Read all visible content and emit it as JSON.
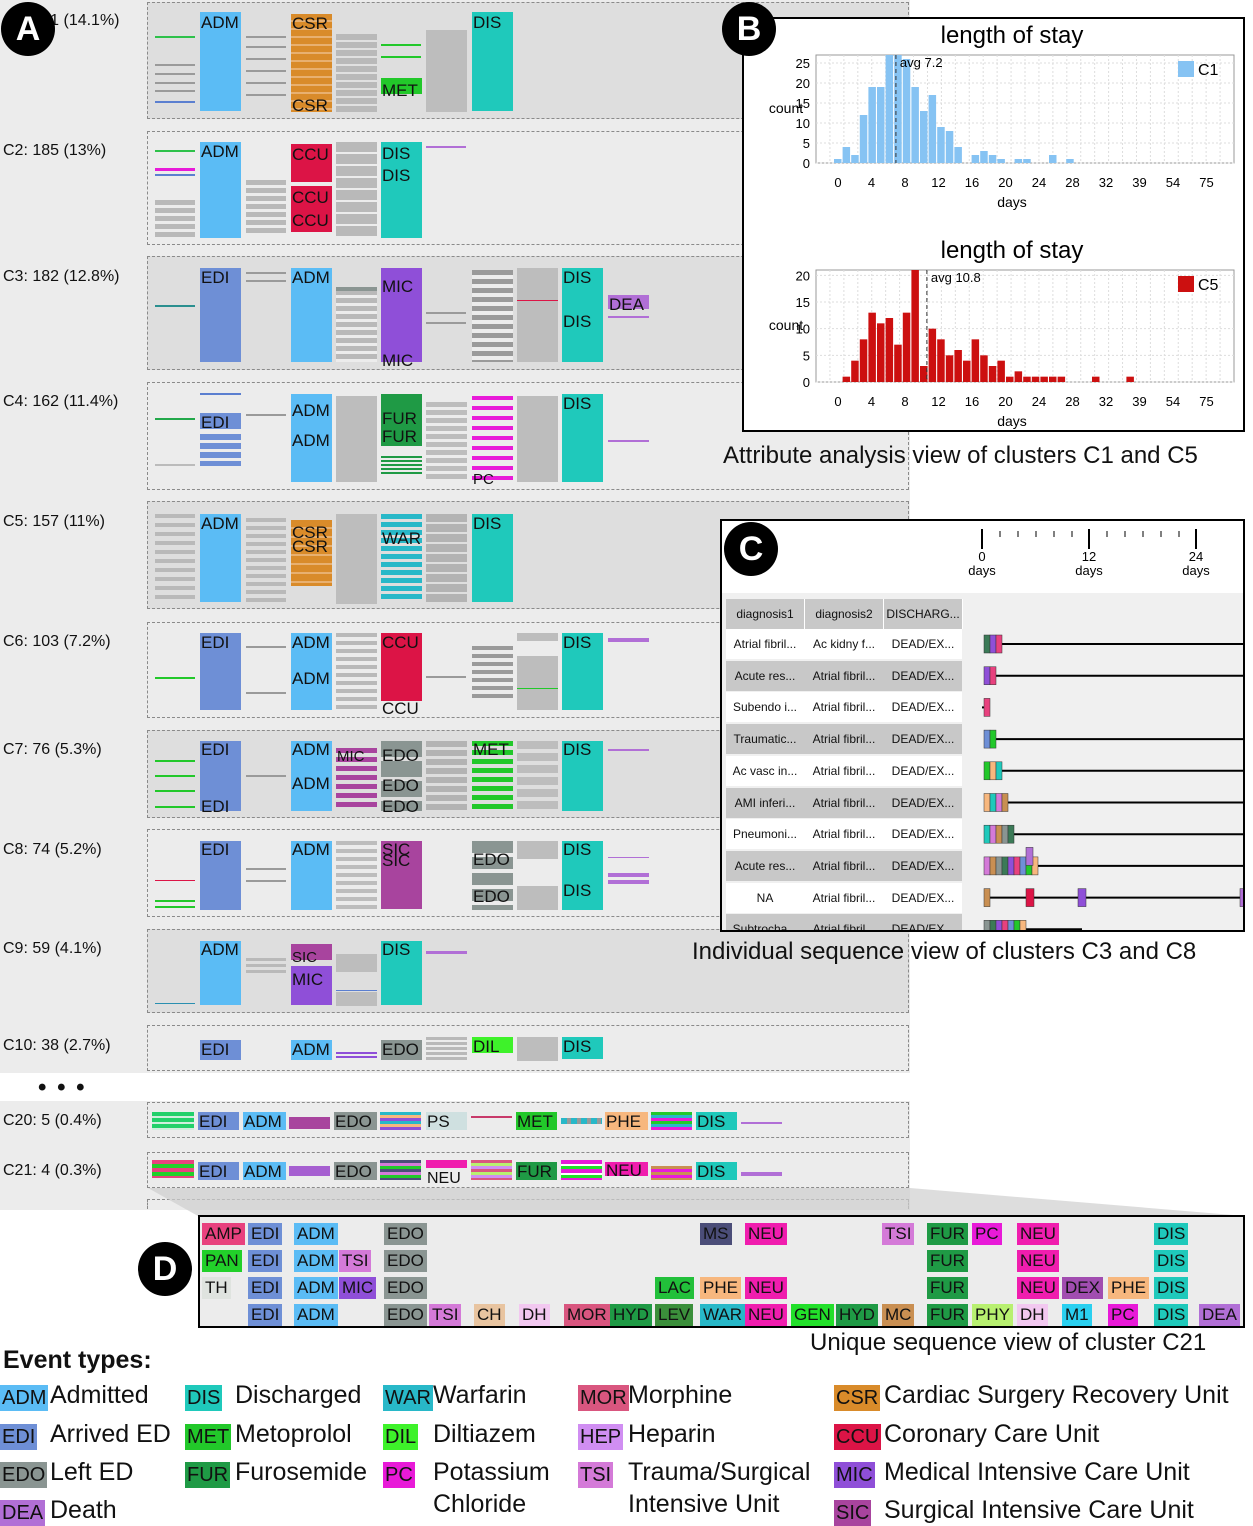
{
  "markers": {
    "a": "A",
    "b": "B",
    "c": "C",
    "d": "D",
    "ellipsis": "• • •"
  },
  "clusters": [
    {
      "label": "C1: 201 (14.1%)"
    },
    {
      "label": "C2: 185 (13%)"
    },
    {
      "label": "C3: 182 (12.8%)"
    },
    {
      "label": "C4: 162 (11.4%)"
    },
    {
      "label": "C5: 157 (11%)"
    },
    {
      "label": "C6: 103 (7.2%)"
    },
    {
      "label": "C7: 76 (5.3%)"
    },
    {
      "label": "C8: 74 (5.2%)"
    },
    {
      "label": "C9: 59 (4.1%)"
    },
    {
      "label": "C10: 38 (2.7%)"
    },
    {
      "label": "C20: 5 (0.4%)"
    },
    {
      "label": "C21: 4 (0.3%)"
    }
  ],
  "block_labels": {
    "adm": "ADM",
    "dis": "DIS",
    "csr": "CSR",
    "met": "MET",
    "ccu": "CCU",
    "edi": "EDI",
    "mic": "MIC",
    "dea": "DEA",
    "fur": "FUR",
    "pc": "PC",
    "war": "WAR",
    "edo": "EDO",
    "sic": "SIC",
    "dil": "DIL",
    "ps": "PS",
    "phe": "PHE",
    "neu": "NEU"
  },
  "panel_b": {
    "caption": "Attribute analysis view of clusters C1 and C5",
    "ylabel": "count",
    "xlabel": "days"
  },
  "chart_data": [
    {
      "type": "bar",
      "title": "length of stay",
      "legend": "C1",
      "legend_position": "top-right",
      "color": "#86c3f3",
      "xlabel": "days",
      "ylabel": "count",
      "x_ticks": [
        "0",
        "4",
        "8",
        "12",
        "16",
        "20",
        "24",
        "28",
        "32",
        "39",
        "54",
        "75"
      ],
      "y_ticks": [
        "0",
        "5",
        "10",
        "15",
        "20",
        "25"
      ],
      "ylim": [
        0,
        27
      ],
      "annotation": "avg 7.2",
      "avg": 7.2,
      "values": [
        1,
        4,
        2,
        12,
        19,
        19,
        27,
        27,
        26,
        19,
        13,
        17,
        9,
        8,
        4,
        0,
        2,
        3,
        2,
        1,
        0,
        1,
        1,
        0,
        0,
        2,
        0,
        1
      ]
    },
    {
      "type": "bar",
      "title": "length of stay",
      "legend": "C5",
      "legend_position": "top-right",
      "color": "#cc1010",
      "xlabel": "days",
      "ylabel": "count",
      "x_ticks": [
        "0",
        "4",
        "8",
        "12",
        "16",
        "20",
        "24",
        "28",
        "32",
        "39",
        "54",
        "75"
      ],
      "y_ticks": [
        "0",
        "5",
        "10",
        "15",
        "20"
      ],
      "ylim": [
        0,
        21
      ],
      "annotation": "avg 10.8",
      "avg": 10.8,
      "values": [
        0,
        1,
        4,
        8,
        13,
        11,
        12,
        7,
        13,
        21,
        3,
        10,
        8,
        5,
        6,
        4,
        8,
        5,
        3,
        4,
        1,
        2,
        1,
        1,
        1,
        1,
        1,
        0,
        0,
        0,
        1,
        0,
        0,
        0,
        1
      ]
    }
  ],
  "panel_c": {
    "caption": "Individual sequence view of clusters C3 and C8",
    "ticks": [
      "0\ndays",
      "12\ndays",
      "24\ndays"
    ],
    "tick0": "0",
    "tick1": "12",
    "tick2": "24",
    "tick_unit": "days",
    "headers": [
      "diagnosis1",
      "diagnosis2",
      "DISCHARG..."
    ],
    "rows": [
      [
        "Atrial fibril...",
        "Ac kidny f...",
        "DEAD/EX..."
      ],
      [
        "Acute res...",
        "Atrial fibril...",
        "DEAD/EX..."
      ],
      [
        "Subendo i...",
        "Atrial fibril...",
        "DEAD/EX..."
      ],
      [
        "Traumatic...",
        "Atrial fibril...",
        "DEAD/EX..."
      ],
      [
        "Ac vasc in...",
        "Atrial fibril...",
        "DEAD/EX..."
      ],
      [
        "AMI inferi...",
        "Atrial fibril...",
        "DEAD/EX..."
      ],
      [
        "Pneumoni...",
        "Atrial fibril...",
        "DEAD/EX..."
      ],
      [
        "Acute res...",
        "Atrial fibril...",
        "DEAD/EX..."
      ],
      [
        "NA",
        "Atrial fibril...",
        "DEAD/EX..."
      ],
      [
        "Subtrocha...",
        "Atrial fibril...",
        "DEAD/EX..."
      ]
    ]
  },
  "panel_d": {
    "caption": "Unique sequence view of cluster C21",
    "rows": [
      [
        [
          "AMP",
          "#e8417e",
          0
        ],
        [
          "EDI",
          "#6e8fd6",
          46
        ],
        [
          "ADM",
          "#5bbcf5",
          92
        ],
        [
          "EDO",
          "#8a9592",
          182
        ],
        [
          "MS",
          "#4b4d78",
          498
        ],
        [
          "NEU",
          "#f01dae",
          543
        ],
        [
          "TSI",
          "#d47ad8",
          680
        ],
        [
          "FUR",
          "#1f9a45",
          725
        ],
        [
          "PC",
          "#e81ad8",
          770
        ],
        [
          "NEU",
          "#f01dae",
          815
        ],
        [
          "DIS",
          "#1fc9bb",
          952
        ]
      ],
      [
        [
          "PAN",
          "#22d02a",
          0
        ],
        [
          "EDI",
          "#6e8fd6",
          46
        ],
        [
          "ADM",
          "#5bbcf5",
          92
        ],
        [
          "TSI",
          "#d47ad8",
          137
        ],
        [
          "EDO",
          "#8a9592",
          182
        ],
        [
          "FUR",
          "#1f9a45",
          725
        ],
        [
          "NEU",
          "#f01dae",
          815
        ],
        [
          "DIS",
          "#1fc9bb",
          952
        ]
      ],
      [
        [
          "TH",
          "#dfe3df",
          0
        ],
        [
          "EDI",
          "#6e8fd6",
          46
        ],
        [
          "ADM",
          "#5bbcf5",
          92
        ],
        [
          "MIC",
          "#8f4fd8",
          137
        ],
        [
          "EDO",
          "#8a9592",
          182
        ],
        [
          "LAC",
          "#22c03a",
          453
        ],
        [
          "PHE",
          "#f7b77e",
          498
        ],
        [
          "NEU",
          "#f01dae",
          543
        ],
        [
          "FUR",
          "#1f9a45",
          725
        ],
        [
          "NEU",
          "#f01dae",
          815
        ],
        [
          "DEX",
          "#a14db0",
          860
        ],
        [
          "PHE",
          "#f7b77e",
          906
        ],
        [
          "DIS",
          "#1fc9bb",
          952
        ]
      ],
      [
        [
          "EDI",
          "#6e8fd6",
          46
        ],
        [
          "ADM",
          "#5bbcf5",
          92
        ],
        [
          "EDO",
          "#8a9592",
          182
        ],
        [
          "TSI",
          "#d47ad8",
          227
        ],
        [
          "CH",
          "#e8c4a0",
          272
        ],
        [
          "DH",
          "#f2c8f0",
          317
        ],
        [
          "MOR",
          "#d9567f",
          362
        ],
        [
          "HYD",
          "#1f9a45",
          408
        ],
        [
          "LEV",
          "#3b8f3b",
          453
        ],
        [
          "WAR",
          "#28b8c8",
          498
        ],
        [
          "NEU",
          "#f01dae",
          543
        ],
        [
          "GEN",
          "#22e02a",
          589
        ],
        [
          "HYD",
          "#1f9a45",
          634
        ],
        [
          "MC",
          "#c98f52",
          680
        ],
        [
          "FUR",
          "#1f9a45",
          725
        ],
        [
          "PHY",
          "#b8f070",
          770
        ],
        [
          "DH",
          "#f2c8f0",
          815
        ],
        [
          "M1",
          "#2ad0f0",
          860
        ],
        [
          "PC",
          "#e81ad8",
          906
        ],
        [
          "DIS",
          "#1fc9bb",
          952
        ],
        [
          "DEA",
          "#b16fd6",
          997
        ]
      ]
    ]
  },
  "legend": {
    "title": "Event types:",
    "items": [
      {
        "code": "ADM",
        "name": "Admitted",
        "color": "#5bbcf5"
      },
      {
        "code": "EDI",
        "name": "Arrived ED",
        "color": "#6e8fd6"
      },
      {
        "code": "EDO",
        "name": "Left ED",
        "color": "#8a9592"
      },
      {
        "code": "DEA",
        "name": "Death",
        "color": "#b16fd6"
      },
      {
        "code": "DIS",
        "name": "Discharged",
        "color": "#1fc9bb"
      },
      {
        "code": "MET",
        "name": "Metoprolol",
        "color": "#22c82a"
      },
      {
        "code": "FUR",
        "name": "Furosemide",
        "color": "#1f9a45"
      },
      {
        "code": "WAR",
        "name": "Warfarin",
        "color": "#28b8c8"
      },
      {
        "code": "DIL",
        "name": "Diltiazem",
        "color": "#3ef22a"
      },
      {
        "code": "PC",
        "name": "Potassium",
        "name2": "Chloride",
        "color": "#e81ad8"
      },
      {
        "code": "MOR",
        "name": "Morphine",
        "color": "#d9567f"
      },
      {
        "code": "HEP",
        "name": "Heparin",
        "color": "#d08ef2"
      },
      {
        "code": "TSI",
        "name": "Trauma/Surgical",
        "name2": "Intensive Unit",
        "color": "#d47ad8"
      },
      {
        "code": "CSR",
        "name": "Cardiac Surgery Recovery Unit",
        "color": "#d98b2a"
      },
      {
        "code": "CCU",
        "name": "Coronary Care Unit",
        "color": "#dc1446"
      },
      {
        "code": "MIC",
        "name": "Medical Intensive Care Unit",
        "color": "#8f4fd8"
      },
      {
        "code": "SIC",
        "name": "Surgical Intensive Care Unit",
        "color": "#a8449e"
      }
    ]
  }
}
